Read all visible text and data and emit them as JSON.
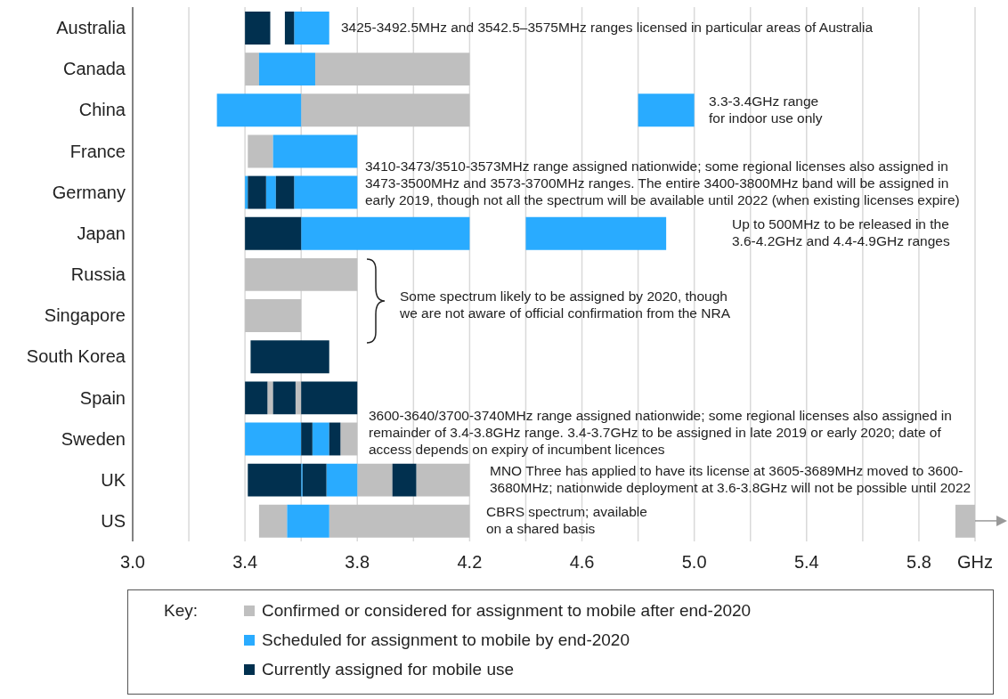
{
  "chart_data": {
    "type": "bar",
    "orientation": "horizontal",
    "categories": [
      "Australia",
      "Canada",
      "China",
      "France",
      "Germany",
      "Japan",
      "Russia",
      "Singapore",
      "South Korea",
      "Spain",
      "Sweden",
      "UK",
      "US"
    ],
    "xlim": [
      3.0,
      6.0
    ],
    "xticks": [
      {
        "value": 3.0,
        "label": "3.0"
      },
      {
        "value": 3.2,
        "label": null
      },
      3.4,
      {
        "value": 3.6,
        "label": null
      },
      3.8,
      {
        "value": 4.0,
        "label": null
      },
      4.2,
      {
        "value": 4.4,
        "label": null
      },
      4.6,
      {
        "value": 4.8,
        "label": null
      },
      {
        "value": 5.0,
        "label": "5.0"
      },
      {
        "value": 5.2,
        "label": null
      },
      5.4,
      {
        "value": 5.6,
        "label": null
      },
      5.8,
      {
        "value": 6.0,
        "label": "GHz"
      }
    ],
    "grid": "x",
    "legend": "bottom",
    "legend_title": "Key:",
    "series": [
      {
        "name": "Confirmed or considered for assignment to mobile after end-2020",
        "color": "#bfbfbf",
        "base": [
          null,
          3.4,
          3.6,
          3.41,
          null,
          null,
          3.4,
          3.4,
          null,
          3.48,
          3.74,
          3.8,
          3.45
        ],
        "values": [
          null,
          0.05,
          0.6,
          0.09,
          null,
          null,
          0.4,
          0.2,
          null,
          0.02,
          0.06,
          0.125,
          0.1
        ]
      },
      {
        "color": "#bfbfbf",
        "base": [
          null,
          3.65,
          null,
          null,
          null,
          null,
          null,
          null,
          null,
          3.58,
          null,
          4.01,
          3.7
        ],
        "values": [
          null,
          0.55,
          null,
          null,
          null,
          null,
          null,
          null,
          null,
          0.02,
          null,
          0.19,
          0.5
        ]
      },
      {
        "color": "#bfbfbf",
        "base": [
          null,
          null,
          null,
          null,
          null,
          null,
          null,
          null,
          null,
          null,
          null,
          null,
          5.93
        ],
        "values": [
          null,
          null,
          null,
          null,
          null,
          null,
          null,
          null,
          null,
          null,
          null,
          null,
          0.07
        ]
      },
      {
        "name": "Scheduled for assignment to mobile by end-2020",
        "color": "#29abff",
        "base": [
          3.575,
          3.45,
          3.3,
          3.5,
          3.4,
          3.6,
          null,
          null,
          null,
          null,
          3.4,
          3.6,
          3.55
        ],
        "values": [
          0.125,
          0.2,
          0.3,
          0.3,
          0.01,
          0.6,
          null,
          null,
          null,
          null,
          0.2,
          0.005,
          0.15
        ]
      },
      {
        "color": "#29abff",
        "base": [
          null,
          null,
          4.8,
          null,
          3.475,
          4.4,
          null,
          null,
          null,
          null,
          3.64,
          3.69,
          null
        ],
        "values": [
          null,
          null,
          0.2,
          null,
          0.035,
          0.5,
          null,
          null,
          null,
          null,
          0.06,
          0.11,
          null
        ]
      },
      {
        "color": "#29abff",
        "base": [
          null,
          null,
          null,
          null,
          3.575,
          null,
          null,
          null,
          null,
          null,
          null,
          null,
          null
        ],
        "values": [
          null,
          null,
          null,
          null,
          0.225,
          null,
          null,
          null,
          null,
          null,
          null,
          null,
          null
        ]
      },
      {
        "name": "Currently assigned for mobile use",
        "color": "#01304f",
        "base": [
          3.4,
          null,
          null,
          null,
          3.41,
          3.4,
          null,
          null,
          3.42,
          3.4,
          3.6,
          3.41,
          null
        ],
        "values": [
          0.09,
          null,
          null,
          null,
          0.065,
          0.2,
          null,
          null,
          0.28,
          0.08,
          0.04,
          0.19,
          null
        ]
      },
      {
        "color": "#01304f",
        "base": [
          3.542,
          null,
          null,
          null,
          3.51,
          null,
          null,
          null,
          null,
          3.5,
          3.7,
          3.605,
          null
        ],
        "values": [
          0.033,
          null,
          null,
          null,
          0.065,
          null,
          null,
          null,
          null,
          0.08,
          0.04,
          0.085,
          null
        ]
      },
      {
        "color": "#01304f",
        "base": [
          null,
          null,
          null,
          null,
          null,
          null,
          null,
          null,
          null,
          3.6,
          null,
          3.925,
          null
        ],
        "values": [
          null,
          null,
          null,
          null,
          null,
          null,
          null,
          null,
          null,
          0.2,
          null,
          0.085,
          null
        ]
      }
    ],
    "annotations": [
      "3425-3492.5MHz and 3542.5–3575MHz ranges licensed in particular areas of Australia",
      "3.3-3.4GHz range\nfor indoor use only",
      "3410-3473/3510-3573MHz range assigned nationwide; some regional licenses also assigned in\n3473-3500MHz and 3573-3700MHz ranges. The entire 3400-3800MHz band will be assigned in\nearly 2019, though not all the spectrum will be available until 2022 (when existing licenses expire)",
      "Up to 500MHz to be released in the\n3.6-4.2GHz and 4.4-4.9GHz ranges",
      "Some spectrum likely to be assigned by 2020, though\nwe are not aware of official confirmation from the NRA",
      "3600-3640/3700-3740MHz range assigned nationwide; some regional licenses also assigned in\nremainder of 3.4-3.8GHz range. 3.4-3.7GHz to be assigned in late 2019 or early 2020; date of\naccess depends on expiry of incumbent licences",
      "MNO Three has applied to have its license at 3605-3689MHz moved to 3600-\n3680MHz; nationwide deployment at 3.6-3.8GHz will not be possible until 2022",
      "CBRS spectrum; available\non a shared basis"
    ]
  }
}
